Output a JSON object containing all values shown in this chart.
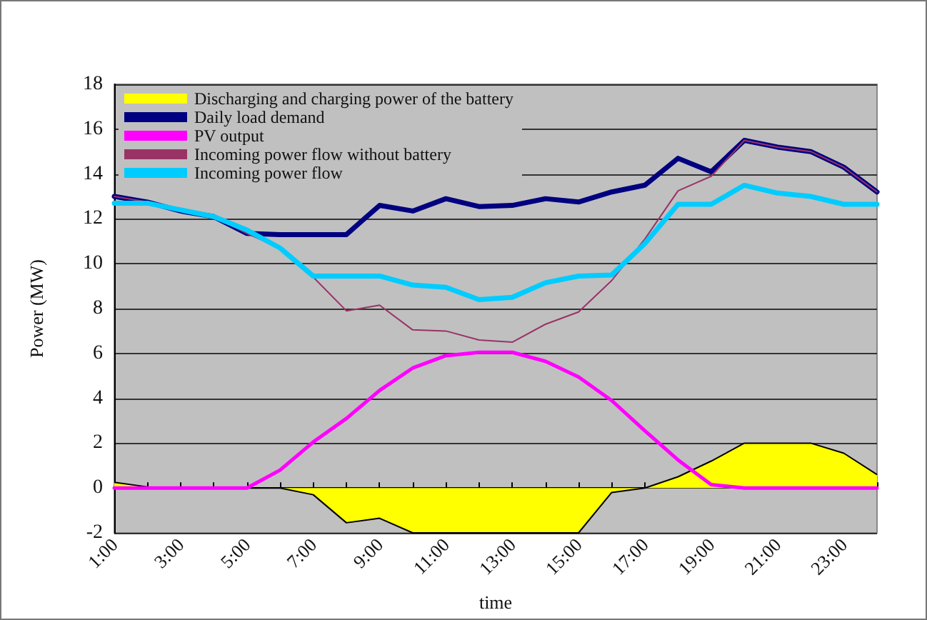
{
  "chart_data": {
    "type": "line",
    "xlabel": "time",
    "ylabel": "Power (MW)",
    "categories": [
      "1:00",
      null,
      "3:00",
      null,
      "5:00",
      null,
      "7:00",
      null,
      "9:00",
      null,
      "11:00",
      null,
      "13:00",
      null,
      "15:00",
      null,
      "17:00",
      null,
      "19:00",
      null,
      "21:00",
      null,
      "23:00",
      null
    ],
    "ylim": [
      -2,
      18
    ],
    "yticks": [
      -2,
      0,
      2,
      4,
      6,
      8,
      10,
      12,
      14,
      16,
      18
    ],
    "grid": "y",
    "legend": "top left",
    "marker": "none",
    "series": [
      {
        "name": "Discharging and charging power of the battery",
        "type": "area",
        "color": "#ffff00",
        "values": [
          0.25,
          0.05,
          0,
          0,
          0,
          0,
          -0.3,
          -1.55,
          -1.35,
          -2,
          -2,
          -2,
          -2,
          -2,
          -2,
          -0.2,
          0,
          0.5,
          1.2,
          2,
          2,
          2,
          1.55,
          0.6
        ]
      },
      {
        "name": "Daily load demand",
        "color": "#000080",
        "values": [
          13,
          12.75,
          12.35,
          12.1,
          11.35,
          11.3,
          11.3,
          11.3,
          12.6,
          12.35,
          12.9,
          12.55,
          12.6,
          12.9,
          12.75,
          13.2,
          13.5,
          14.7,
          14.1,
          15.5,
          15.2,
          15,
          14.3,
          13.2
        ]
      },
      {
        "name": "PV output",
        "color": "#ff00ff",
        "values": [
          0,
          0,
          0,
          0,
          0,
          0.8,
          2.05,
          3.1,
          4.35,
          5.35,
          5.9,
          6.05,
          6.05,
          5.65,
          4.95,
          3.9,
          2.55,
          1.25,
          0.15,
          0,
          0,
          0,
          0,
          0
        ]
      },
      {
        "name": "Incoming power flow without battery",
        "color": "#993366",
        "values": [
          13,
          12.75,
          12.35,
          12.1,
          11.35,
          10.7,
          9.4,
          7.9,
          8.15,
          7.05,
          7,
          6.6,
          6.5,
          7.3,
          7.85,
          9.25,
          11.1,
          13.25,
          13.9,
          15.5,
          15.2,
          15,
          14.3,
          13.2
        ]
      },
      {
        "name": "Incoming power flow",
        "color": "#00ccff",
        "values": [
          12.7,
          12.7,
          12.4,
          12.1,
          11.5,
          10.7,
          9.45,
          9.45,
          9.45,
          9.05,
          8.95,
          8.4,
          8.5,
          9.15,
          9.45,
          9.5,
          10.9,
          12.65,
          12.65,
          13.5,
          13.15,
          13,
          12.65,
          12.65
        ]
      }
    ]
  }
}
